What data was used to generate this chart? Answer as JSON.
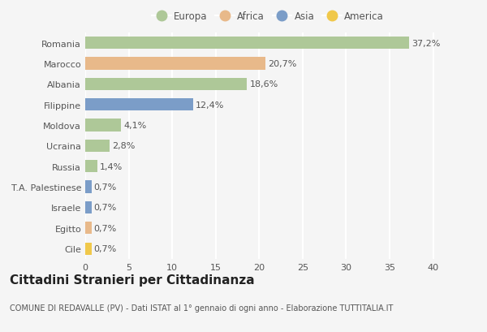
{
  "categories": [
    "Romania",
    "Marocco",
    "Albania",
    "Filippine",
    "Moldova",
    "Ucraina",
    "Russia",
    "T.A. Palestinese",
    "Israele",
    "Egitto",
    "Cile"
  ],
  "values": [
    37.2,
    20.7,
    18.6,
    12.4,
    4.1,
    2.8,
    1.4,
    0.7,
    0.7,
    0.7,
    0.7
  ],
  "labels": [
    "37,2%",
    "20,7%",
    "18,6%",
    "12,4%",
    "4,1%",
    "2,8%",
    "1,4%",
    "0,7%",
    "0,7%",
    "0,7%",
    "0,7%"
  ],
  "continents": [
    "Europa",
    "Africa",
    "Europa",
    "Asia",
    "Europa",
    "Europa",
    "Europa",
    "Asia",
    "Asia",
    "Africa",
    "America"
  ],
  "colors": {
    "Europa": "#aec898",
    "Africa": "#e8b98a",
    "Asia": "#7b9dc8",
    "America": "#f0c84a"
  },
  "legend_order": [
    "Europa",
    "Africa",
    "Asia",
    "America"
  ],
  "xlim": [
    0,
    42
  ],
  "xticks": [
    0,
    5,
    10,
    15,
    20,
    25,
    30,
    35,
    40
  ],
  "title": "Cittadini Stranieri per Cittadinanza",
  "subtitle": "COMUNE DI REDAVALLE (PV) - Dati ISTAT al 1° gennaio di ogni anno - Elaborazione TUTTITALIA.IT",
  "bg_color": "#f5f5f5",
  "bar_height": 0.6,
  "grid_color": "#ffffff",
  "label_fontsize": 8,
  "axis_label_fontsize": 8,
  "title_fontsize": 11,
  "subtitle_fontsize": 7
}
